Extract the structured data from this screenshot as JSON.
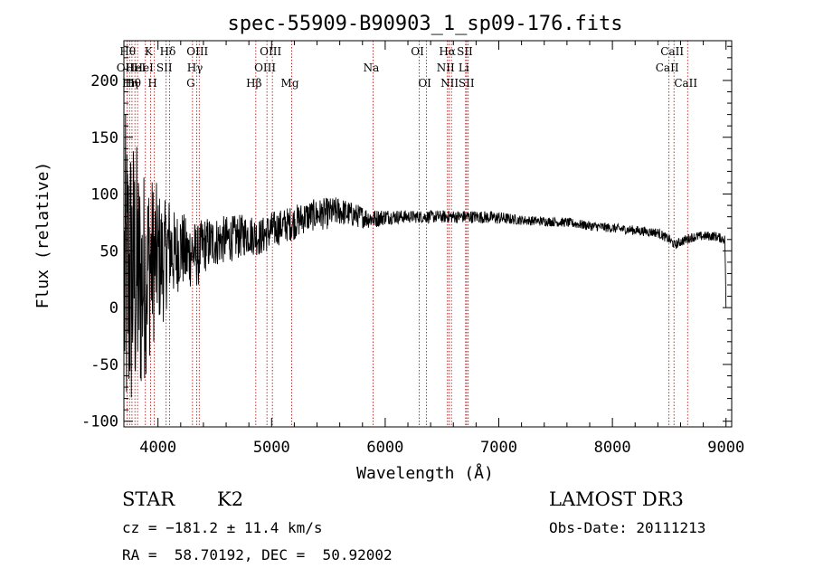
{
  "chart_data": {
    "type": "line",
    "title": "spec-55909-B90903_1_sp09-176.fits",
    "xlabel": "Wavelength (Å)",
    "ylabel": "Flux (relative)",
    "xlim": [
      3700,
      9050
    ],
    "ylim": [
      -105,
      235
    ],
    "xticks": [
      4000,
      5000,
      6000,
      7000,
      8000,
      9000
    ],
    "yticks": [
      -100,
      -50,
      0,
      50,
      100,
      150,
      200
    ],
    "spectrum_anchors": {
      "x": [
        3700,
        3750,
        3800,
        3850,
        3900,
        3950,
        4000,
        4050,
        4100,
        4150,
        4200,
        4250,
        4300,
        4350,
        4400,
        4500,
        4600,
        4700,
        4800,
        4900,
        5000,
        5100,
        5200,
        5300,
        5400,
        5500,
        5600,
        5700,
        5800,
        5900,
        6000,
        6200,
        6400,
        6600,
        6800,
        7000,
        7200,
        7400,
        7600,
        7800,
        8000,
        8200,
        8400,
        8500,
        8550,
        8600,
        8700,
        8800,
        8900,
        8990,
        9000
      ],
      "y": [
        20,
        25,
        30,
        20,
        35,
        40,
        45,
        40,
        55,
        45,
        55,
        45,
        50,
        45,
        55,
        58,
        60,
        62,
        65,
        62,
        68,
        72,
        75,
        80,
        82,
        83,
        85,
        82,
        80,
        78,
        80,
        80,
        80,
        80,
        80,
        79,
        77,
        76,
        75,
        72,
        70,
        68,
        66,
        60,
        55,
        58,
        62,
        63,
        63,
        60,
        0
      ],
      "noise": [
        110,
        100,
        90,
        75,
        65,
        55,
        45,
        38,
        32,
        28,
        25,
        24,
        22,
        20,
        18,
        16,
        15,
        14,
        13,
        12,
        12,
        11,
        11,
        10,
        10,
        10,
        9,
        8,
        7,
        6,
        5,
        4,
        4,
        4,
        4,
        4,
        3,
        3,
        3,
        3,
        3,
        3,
        3,
        3,
        3,
        3,
        3,
        3,
        3,
        3,
        0
      ]
    },
    "lines": [
      {
        "wl": 3750,
        "label": "Hθ",
        "row": 0
      },
      {
        "wl": 3727,
        "label": "OII",
        "row": 1
      },
      {
        "wl": 3771,
        "label": "Hη",
        "row": 2
      },
      {
        "wl": 3797,
        "label": "Hθ",
        "row": 2
      },
      {
        "wl": 3820,
        "label": "HeI",
        "row": 1
      },
      {
        "wl": 3889,
        "label": "HeI",
        "row": 1
      },
      {
        "wl": 3934,
        "label": "K",
        "row": 0
      },
      {
        "wl": 3968,
        "label": "H",
        "row": 2
      },
      {
        "wl": 4072,
        "label": "SII",
        "row": 1
      },
      {
        "wl": 4102,
        "label": "Hδ",
        "row": 0
      },
      {
        "wl": 4304,
        "label": "G",
        "row": 2
      },
      {
        "wl": 4341,
        "label": "Hγ",
        "row": 1
      },
      {
        "wl": 4363,
        "label": "OIII",
        "row": 0
      },
      {
        "wl": 4861,
        "label": "Hβ",
        "row": 2
      },
      {
        "wl": 4959,
        "label": "OIII",
        "row": 1
      },
      {
        "wl": 5007,
        "label": "OIII",
        "row": 0
      },
      {
        "wl": 5177,
        "label": "Mg",
        "row": 2
      },
      {
        "wl": 5893,
        "label": "Na",
        "row": 1
      },
      {
        "wl": 6300,
        "label": "OI",
        "row": 0
      },
      {
        "wl": 6364,
        "label": "OI",
        "row": 2
      },
      {
        "wl": 6548,
        "label": "NII",
        "row": 1
      },
      {
        "wl": 6563,
        "label": "Hα",
        "row": 0
      },
      {
        "wl": 6583,
        "label": "NII",
        "row": 2
      },
      {
        "wl": 6708,
        "label": "Li",
        "row": 1
      },
      {
        "wl": 6717,
        "label": "SII",
        "row": 0
      },
      {
        "wl": 6731,
        "label": "SII",
        "row": 2
      },
      {
        "wl": 8498,
        "label": "CaII",
        "row": 1
      },
      {
        "wl": 8542,
        "label": "CaII",
        "row": 0
      },
      {
        "wl": 8662,
        "label": "CaII",
        "row": 2
      }
    ]
  },
  "info": {
    "classification": "STAR",
    "subclass": "K2",
    "survey": "LAMOST DR3",
    "cz": "cz = −181.2 ± 11.4 km/s",
    "obs_date": "Obs-Date: 20111213",
    "coords": "RA =  58.70192, DEC =  50.92002"
  }
}
